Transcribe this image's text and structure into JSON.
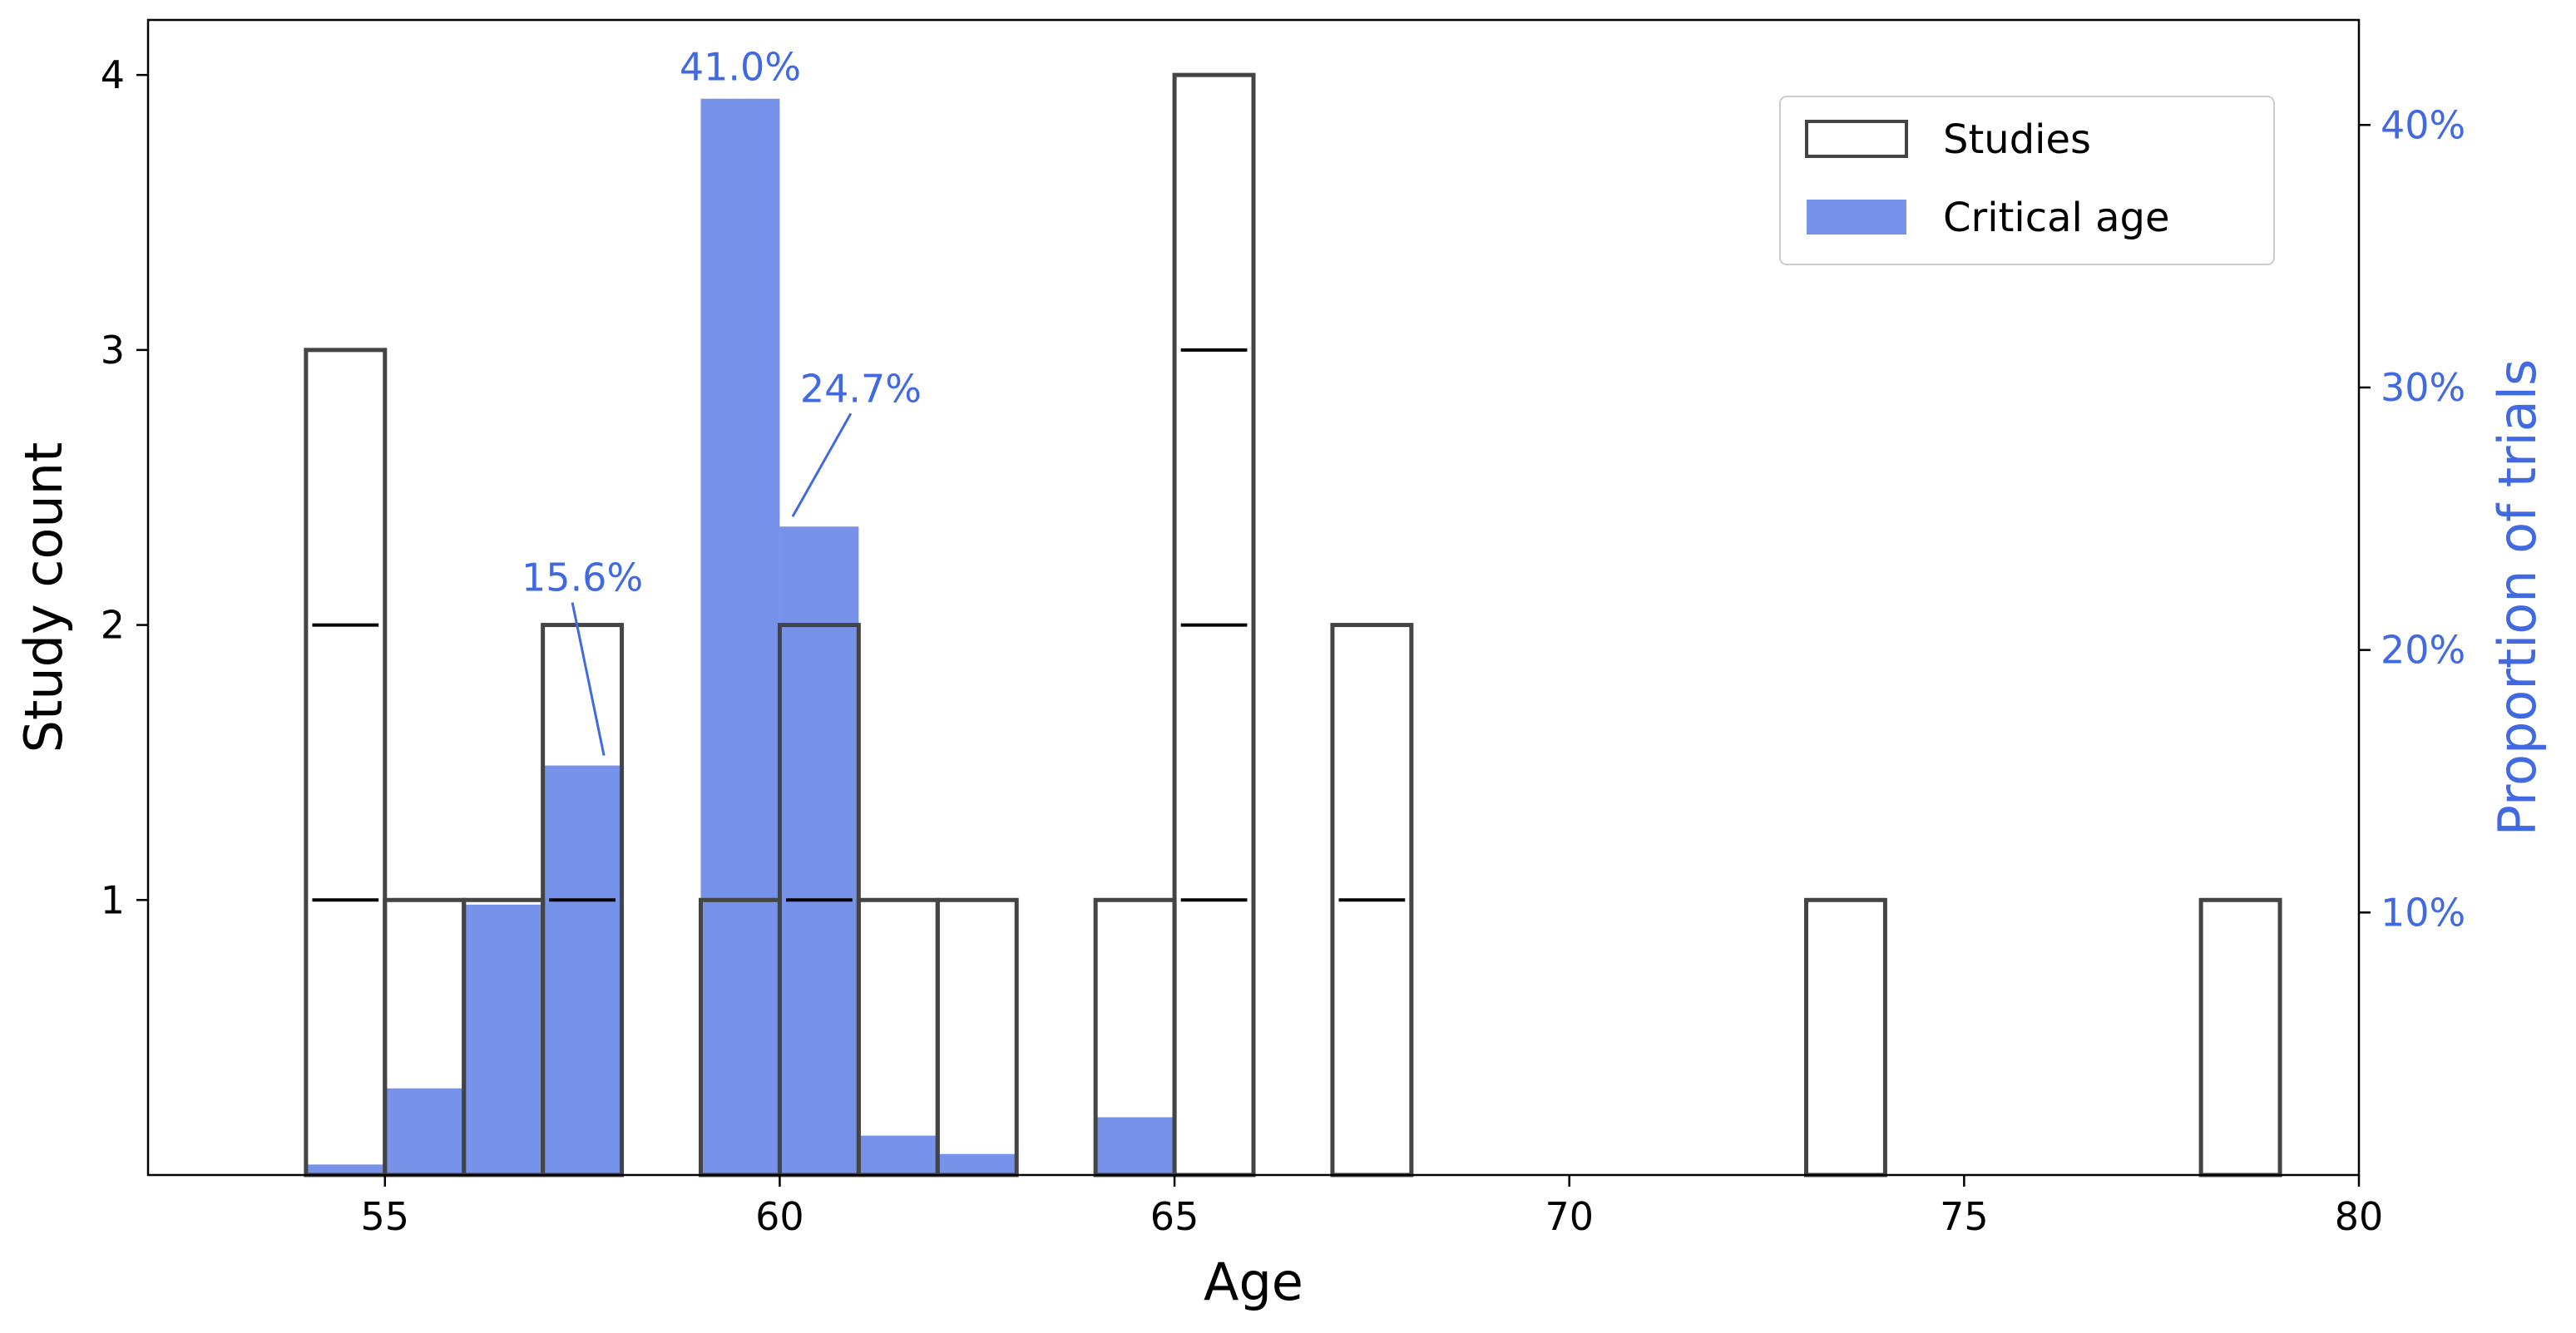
{
  "chart_data": {
    "type": "bar",
    "xlabel": "Age",
    "ylabel_left": "Study count",
    "ylabel_right": "Proportion of trials",
    "xlim": [
      52,
      80
    ],
    "ylim_left": [
      0,
      4.2
    ],
    "ylim_right": [
      0,
      0.44
    ],
    "x_ticks": [
      55,
      60,
      65,
      70,
      75,
      80
    ],
    "y_ticks_left": [
      1,
      2,
      3,
      4
    ],
    "y_ticks_right": [
      0.1,
      0.2,
      0.3,
      0.4
    ],
    "y_tick_labels_right": [
      "10%",
      "20%",
      "30%",
      "40%"
    ],
    "bin_width": 1,
    "series": [
      {
        "name": "Studies",
        "style": "outline",
        "color": "#444444",
        "bins": [
          {
            "start": 54,
            "count": 3
          },
          {
            "start": 55,
            "count": 1
          },
          {
            "start": 56,
            "count": 1
          },
          {
            "start": 57,
            "count": 2
          },
          {
            "start": 59,
            "count": 1
          },
          {
            "start": 60,
            "count": 2
          },
          {
            "start": 61,
            "count": 1
          },
          {
            "start": 62,
            "count": 1
          },
          {
            "start": 64,
            "count": 1
          },
          {
            "start": 65,
            "count": 4
          },
          {
            "start": 67,
            "count": 2
          },
          {
            "start": 73,
            "count": 1
          },
          {
            "start": 78,
            "count": 1
          }
        ]
      },
      {
        "name": "Critical age",
        "style": "filled",
        "color": "#4169E1",
        "bins": [
          {
            "start": 54,
            "proportion": 0.004
          },
          {
            "start": 55,
            "proportion": 0.033
          },
          {
            "start": 56,
            "proportion": 0.103
          },
          {
            "start": 57,
            "proportion": 0.156
          },
          {
            "start": 59,
            "proportion": 0.41
          },
          {
            "start": 60,
            "proportion": 0.247
          },
          {
            "start": 61,
            "proportion": 0.015
          },
          {
            "start": 62,
            "proportion": 0.008
          },
          {
            "start": 64,
            "proportion": 0.022
          }
        ]
      }
    ],
    "annotations": [
      {
        "text": "41.0%",
        "bin_start": 59,
        "value": 0.41
      },
      {
        "text": "24.7%",
        "bin_start": 60,
        "value": 0.247
      },
      {
        "text": "15.6%",
        "bin_start": 57,
        "value": 0.156
      }
    ],
    "legend": {
      "position": "top-right",
      "entries": [
        {
          "label": "Studies",
          "style": "outline"
        },
        {
          "label": "Critical age",
          "style": "filled"
        }
      ]
    },
    "colors": {
      "outline": "#444444",
      "fill": "#4169E1",
      "right_axis": "#4169E1"
    }
  }
}
